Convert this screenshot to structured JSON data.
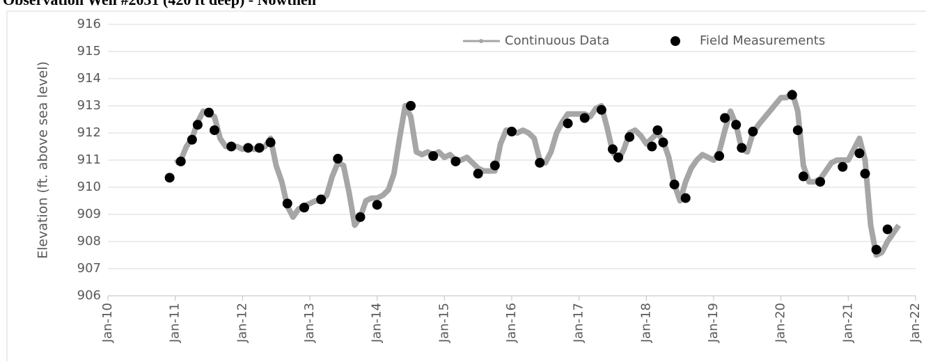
{
  "chart_data": {
    "type": "line-scatter",
    "title": "Observation Well #2031 (420 ft deep) - Nowthen",
    "y_label": "Elevation (ft. above sea level)",
    "ylim": [
      906,
      916
    ],
    "yticks": [
      906,
      907,
      908,
      909,
      910,
      911,
      912,
      913,
      914,
      915,
      916
    ],
    "xlim": [
      "2010-01",
      "2022-01"
    ],
    "xticks": [
      {
        "value": "2010-01",
        "label": "Jan-10"
      },
      {
        "value": "2011-01",
        "label": "Jan-11"
      },
      {
        "value": "2012-01",
        "label": "Jan-12"
      },
      {
        "value": "2013-01",
        "label": "Jan-13"
      },
      {
        "value": "2014-01",
        "label": "Jan-14"
      },
      {
        "value": "2015-01",
        "label": "Jan-15"
      },
      {
        "value": "2016-01",
        "label": "Jan-16"
      },
      {
        "value": "2017-01",
        "label": "Jan-17"
      },
      {
        "value": "2018-01",
        "label": "Jan-18"
      },
      {
        "value": "2019-01",
        "label": "Jan-19"
      },
      {
        "value": "2020-01",
        "label": "Jan-20"
      },
      {
        "value": "2021-01",
        "label": "Jan-21"
      },
      {
        "value": "2022-01",
        "label": "Jan-22"
      }
    ],
    "grid": true,
    "legend": "top-right",
    "series": [
      {
        "name": "Continuous Data",
        "color": "#a6a6a6",
        "kind": "line",
        "x": [
          "2011-01",
          "2011-02",
          "2011-03",
          "2011-04",
          "2011-05",
          "2011-06",
          "2011-07",
          "2011-08",
          "2011-09",
          "2011-10",
          "2011-11",
          "2011-12",
          "2012-01",
          "2012-02",
          "2012-03",
          "2012-04",
          "2012-05",
          "2012-06",
          "2012-07",
          "2012-08",
          "2012-09",
          "2012-10",
          "2012-11",
          "2012-12",
          "2013-01",
          "2013-02",
          "2013-03",
          "2013-04",
          "2013-05",
          "2013-06",
          "2013-07",
          "2013-08",
          "2013-09",
          "2013-10",
          "2013-11",
          "2013-12",
          "2014-01",
          "2014-02",
          "2014-03",
          "2014-04",
          "2014-05",
          "2014-06",
          "2014-07",
          "2014-08",
          "2014-09",
          "2014-10",
          "2014-11",
          "2014-12",
          "2015-01",
          "2015-02",
          "2015-03",
          "2015-04",
          "2015-05",
          "2015-06",
          "2015-07",
          "2015-08",
          "2015-09",
          "2015-10",
          "2015-11",
          "2015-12",
          "2016-01",
          "2016-02",
          "2016-03",
          "2016-04",
          "2016-05",
          "2016-06",
          "2016-07",
          "2016-08",
          "2016-09",
          "2016-10",
          "2016-11",
          "2016-12",
          "2017-01",
          "2017-02",
          "2017-03",
          "2017-04",
          "2017-05",
          "2017-06",
          "2017-07",
          "2017-08",
          "2017-09",
          "2017-10",
          "2017-11",
          "2017-12",
          "2018-01",
          "2018-02",
          "2018-03",
          "2018-04",
          "2018-05",
          "2018-06",
          "2018-07",
          "2018-08",
          "2018-09",
          "2018-10",
          "2018-11",
          "2018-12",
          "2019-01",
          "2019-02",
          "2019-03",
          "2019-04",
          "2019-05",
          "2019-06",
          "2019-07",
          "2019-08",
          "2019-09",
          "2020-01",
          "2020-02",
          "2020-03",
          "2020-04",
          "2020-05",
          "2020-06",
          "2020-07",
          "2020-08",
          "2020-09",
          "2020-10",
          "2020-11",
          "2020-12",
          "2021-01",
          "2021-02",
          "2021-03",
          "2021-04",
          "2021-05",
          "2021-06",
          "2021-07",
          "2021-08",
          "2021-09",
          "2021-10"
        ],
        "values": [
          910.9,
          911.0,
          911.5,
          911.8,
          912.4,
          912.8,
          912.7,
          912.6,
          911.8,
          911.5,
          911.5,
          911.5,
          911.4,
          911.5,
          911.4,
          911.4,
          911.5,
          911.8,
          910.8,
          910.2,
          909.3,
          908.9,
          909.2,
          909.3,
          909.4,
          909.5,
          909.5,
          909.7,
          910.4,
          910.9,
          910.8,
          909.8,
          908.6,
          908.9,
          909.5,
          909.6,
          909.6,
          909.7,
          909.9,
          910.5,
          911.8,
          913.0,
          912.6,
          911.3,
          911.2,
          911.3,
          911.2,
          911.3,
          911.1,
          911.2,
          911.0,
          911.0,
          911.1,
          910.9,
          910.7,
          910.6,
          910.6,
          910.6,
          911.6,
          912.1,
          912.1,
          912.0,
          912.1,
          912.0,
          911.8,
          911.0,
          910.9,
          911.3,
          912.0,
          912.4,
          912.7,
          912.7,
          912.7,
          912.7,
          912.6,
          912.9,
          913.0,
          912.2,
          911.3,
          911.0,
          911.4,
          912.0,
          912.1,
          911.9,
          911.6,
          911.8,
          912.0,
          911.7,
          911.1,
          910.1,
          909.5,
          910.2,
          910.7,
          911.0,
          911.2,
          911.1,
          911.0,
          911.3,
          912.1,
          912.8,
          912.3,
          911.4,
          911.3,
          912.0,
          912.3,
          913.3,
          913.3,
          913.5,
          912.8,
          910.8,
          910.2,
          910.2,
          910.3,
          910.6,
          910.9,
          911.0,
          911.0,
          911.0,
          911.4,
          911.8,
          911.0,
          908.6,
          907.5,
          907.6,
          908.0,
          908.3,
          908.6
        ]
      },
      {
        "name": "Field Measurements",
        "color": "#000000",
        "kind": "scatter",
        "x": [
          "2010-12",
          "2011-02",
          "2011-04",
          "2011-05",
          "2011-07",
          "2011-08",
          "2011-11",
          "2012-02",
          "2012-04",
          "2012-06",
          "2012-09",
          "2012-12",
          "2013-03",
          "2013-06",
          "2013-10",
          "2014-01",
          "2014-07",
          "2014-11",
          "2015-03",
          "2015-07",
          "2015-10",
          "2016-01",
          "2016-06",
          "2016-11",
          "2017-02",
          "2017-05",
          "2017-07",
          "2017-08",
          "2017-10",
          "2018-02",
          "2018-03",
          "2018-04",
          "2018-06",
          "2018-08",
          "2019-02",
          "2019-03",
          "2019-05",
          "2019-06",
          "2019-08",
          "2020-03",
          "2020-04",
          "2020-05",
          "2020-08",
          "2020-12",
          "2021-03",
          "2021-04",
          "2021-06",
          "2021-08"
        ],
        "values": [
          910.35,
          910.95,
          911.75,
          912.3,
          912.75,
          912.1,
          911.5,
          911.45,
          911.45,
          911.65,
          909.4,
          909.25,
          909.55,
          911.05,
          908.9,
          909.35,
          913.0,
          911.15,
          910.95,
          910.5,
          910.8,
          912.05,
          910.9,
          912.35,
          912.55,
          912.85,
          911.4,
          911.1,
          911.85,
          911.5,
          912.1,
          911.65,
          910.1,
          909.6,
          911.15,
          912.55,
          912.3,
          911.45,
          912.05,
          913.4,
          912.1,
          910.4,
          910.2,
          910.75,
          911.25,
          910.5,
          907.7,
          908.45
        ]
      }
    ]
  }
}
